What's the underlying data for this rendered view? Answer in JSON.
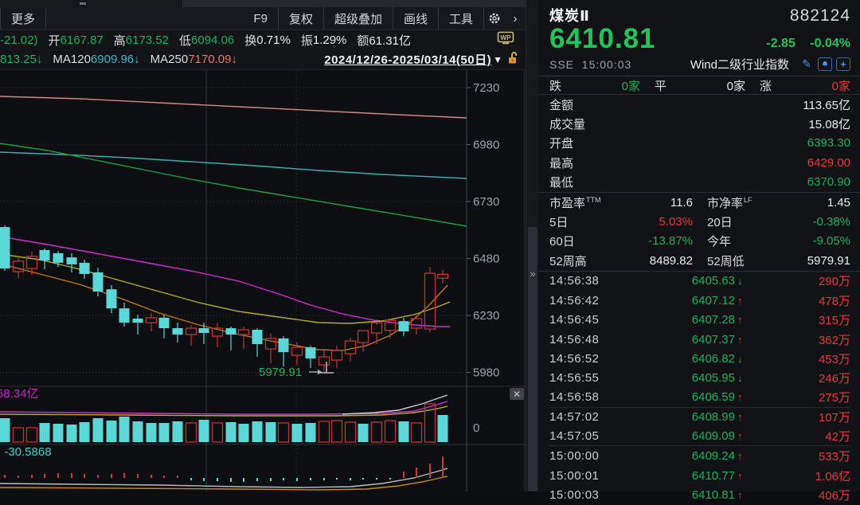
{
  "colors": {
    "green": "#12b45c",
    "red": "#e23b3c",
    "white": "#e8eaed",
    "cyan_candle": "#5ad8d8",
    "red_candle": "#c23434",
    "magenta": "#d024d0",
    "macd_cyan": "#3ecfcf"
  },
  "toolbar": {
    "more": "更多",
    "items": [
      "F9",
      "复权",
      "超级叠加",
      "画线",
      "工具"
    ],
    "gear_icon": "gear-icon",
    "chevron": "›"
  },
  "stats_row": {
    "prefix": "-21.02)",
    "groups": [
      {
        "label": "开",
        "value": "6167.87",
        "color": "green"
      },
      {
        "label": "高",
        "value": "6173.52",
        "color": "green"
      },
      {
        "label": "低",
        "value": "6094.06",
        "color": "green"
      },
      {
        "label": "换",
        "value": "0.71%",
        "color": "white"
      },
      {
        "label": "振",
        "value": "1.29%",
        "color": "white"
      },
      {
        "label": "额",
        "value": "61.31亿",
        "color": "white"
      }
    ]
  },
  "ma_row": {
    "prefix": "813.25↓",
    "groups": [
      {
        "label": "MA120",
        "value": "6909.96↓",
        "color": "cyan"
      },
      {
        "label": "MA250",
        "value": "7170.09↓",
        "color": "salmon"
      }
    ],
    "date_range": "2024/12/26-2025/03/14(50日)",
    "caret": "▼"
  },
  "chart_data": {
    "type": "candlestick",
    "y_axis_ticks": [
      7230,
      6980,
      6730,
      6480,
      6230,
      5980
    ],
    "ylim": [
      5905,
      7307
    ],
    "low_annotation": "5979.91",
    "volume_pane_label": "58.34亿",
    "volume_zero_label": "0",
    "macd_pane_label": ": -30.5868",
    "candles": [
      [
        6,
        6618,
        6625,
        6426,
        6436
      ],
      [
        23,
        6422,
        6489,
        6394,
        6468
      ],
      [
        40,
        6436,
        6510,
        6408,
        6489
      ],
      [
        56,
        6517,
        6524,
        6433,
        6471
      ],
      [
        73,
        6503,
        6513,
        6443,
        6461
      ],
      [
        90,
        6485,
        6503,
        6419,
        6454
      ],
      [
        106,
        6461,
        6475,
        6391,
        6412
      ],
      [
        123,
        6419,
        6440,
        6314,
        6335
      ],
      [
        140,
        6345,
        6363,
        6240,
        6261
      ],
      [
        156,
        6261,
        6286,
        6181,
        6198
      ],
      [
        173,
        6216,
        6233,
        6146,
        6198
      ],
      [
        190,
        6198,
        6240,
        6160,
        6220
      ],
      [
        206,
        6220,
        6232,
        6129,
        6174
      ],
      [
        223,
        6174,
        6198,
        6111,
        6146
      ],
      [
        240,
        6146,
        6188,
        6097,
        6174
      ],
      [
        256,
        6174,
        6198,
        6104,
        6153
      ],
      [
        273,
        6139,
        6198,
        6090,
        6174
      ],
      [
        290,
        6174,
        6181,
        6076,
        6146
      ],
      [
        306,
        6146,
        6181,
        6083,
        6167
      ],
      [
        323,
        6167,
        6174,
        6048,
        6104
      ],
      [
        340,
        6083,
        6150,
        6020,
        6129
      ],
      [
        356,
        6129,
        6139,
        6006,
        6069
      ],
      [
        373,
        6055,
        6111,
        6013,
        6090
      ],
      [
        390,
        6090,
        6097,
        5999,
        6041
      ],
      [
        407,
        6013,
        6076,
        5979.91,
        6048
      ],
      [
        423,
        6034,
        6097,
        5999,
        6076
      ],
      [
        440,
        6062,
        6132,
        6027,
        6118
      ],
      [
        456,
        6111,
        6160,
        6069,
        6163
      ],
      [
        473,
        6153,
        6188,
        6104,
        6198
      ],
      [
        490,
        6164,
        6205,
        6129,
        6209
      ],
      [
        507,
        6205,
        6219,
        6139,
        6160
      ],
      [
        523,
        6174,
        6230,
        6146,
        6216
      ],
      [
        540,
        6170,
        6443,
        6156,
        6415
      ],
      [
        556,
        6393.3,
        6429,
        6370.9,
        6410.81
      ]
    ],
    "volume_heights": [
      30,
      18,
      18,
      24,
      23,
      22,
      25,
      30,
      27,
      32,
      26,
      24,
      24,
      26,
      24,
      28,
      24,
      25,
      23,
      26,
      25,
      24,
      23,
      24,
      26,
      27,
      25,
      23,
      25,
      27,
      26,
      24,
      48,
      34
    ],
    "volume_dirs": [
      0,
      1,
      1,
      0,
      0,
      0,
      0,
      0,
      0,
      0,
      0,
      0,
      0,
      0,
      1,
      0,
      1,
      0,
      0,
      0,
      0,
      1,
      0,
      0,
      1,
      1,
      1,
      0,
      1,
      1,
      0,
      1,
      1,
      0
    ],
    "macd_hist": [
      4,
      3,
      4,
      5,
      6,
      6,
      5,
      4,
      5,
      6,
      5,
      4,
      3,
      3,
      -3,
      -4,
      -4,
      -5,
      -5,
      -4,
      -4,
      -3,
      -4,
      -3,
      -3,
      -2,
      -3,
      -2,
      -2,
      -2,
      8,
      13,
      18,
      27
    ],
    "lines": {
      "ma250": {
        "color": "#cf8884",
        "pts": [
          [
            0,
            33
          ],
          [
            100,
            36
          ],
          [
            200,
            41
          ],
          [
            300,
            46
          ],
          [
            400,
            51
          ],
          [
            500,
            56
          ],
          [
            586,
            60
          ]
        ]
      },
      "ma120": {
        "color": "#2fb3b3",
        "pts": [
          [
            0,
            103
          ],
          [
            80,
            106
          ],
          [
            160,
            110
          ],
          [
            240,
            115
          ],
          [
            320,
            120
          ],
          [
            400,
            126
          ],
          [
            480,
            131
          ],
          [
            586,
            136
          ]
        ]
      },
      "ma60": {
        "color": "#1e9e45",
        "pts": [
          [
            0,
            92
          ],
          [
            60,
            101
          ],
          [
            120,
            113
          ],
          [
            180,
            125
          ],
          [
            240,
            137
          ],
          [
            300,
            148
          ],
          [
            360,
            158
          ],
          [
            420,
            168
          ],
          [
            480,
            178
          ],
          [
            540,
            188
          ],
          [
            586,
            196
          ]
        ]
      },
      "ma20": {
        "color": "#cf30cf",
        "pts": [
          [
            0,
            209
          ],
          [
            60,
            219
          ],
          [
            120,
            230
          ],
          [
            180,
            241
          ],
          [
            240,
            252
          ],
          [
            300,
            265
          ],
          [
            350,
            281
          ],
          [
            390,
            295
          ],
          [
            430,
            306
          ],
          [
            470,
            314
          ],
          [
            510,
            319
          ],
          [
            550,
            322
          ],
          [
            565,
            322
          ]
        ]
      },
      "ma10": {
        "color": "#b5ad28",
        "pts": [
          [
            0,
            231
          ],
          [
            50,
            238
          ],
          [
            100,
            250
          ],
          [
            150,
            264
          ],
          [
            200,
            278
          ],
          [
            250,
            292
          ],
          [
            300,
            303
          ],
          [
            350,
            310
          ],
          [
            400,
            317
          ],
          [
            440,
            318
          ],
          [
            480,
            315
          ],
          [
            520,
            307
          ],
          [
            550,
            297
          ],
          [
            565,
            291
          ]
        ]
      },
      "ma5": {
        "color": "#bf7a1a",
        "pts": [
          [
            0,
            243
          ],
          [
            50,
            256
          ],
          [
            100,
            269
          ],
          [
            150,
            286
          ],
          [
            200,
            305
          ],
          [
            250,
            320
          ],
          [
            300,
            332
          ],
          [
            350,
            342
          ],
          [
            400,
            351
          ],
          [
            430,
            352
          ],
          [
            460,
            346
          ],
          [
            490,
            333
          ],
          [
            515,
            317
          ],
          [
            540,
            294
          ],
          [
            562,
            270
          ]
        ]
      },
      "vol_magenta": {
        "color": "#cf30cf",
        "pts": [
          [
            0,
            429
          ],
          [
            100,
            430
          ],
          [
            200,
            431
          ],
          [
            300,
            432
          ],
          [
            400,
            432
          ],
          [
            480,
            431
          ],
          [
            520,
            428
          ],
          [
            545,
            421
          ],
          [
            562,
            416
          ]
        ]
      },
      "vol_yellow": {
        "color": "#b5ad28",
        "pts": [
          [
            0,
            432
          ],
          [
            150,
            433
          ],
          [
            300,
            434
          ],
          [
            420,
            434
          ],
          [
            480,
            433
          ],
          [
            520,
            430
          ],
          [
            550,
            425
          ],
          [
            562,
            422
          ]
        ]
      },
      "vol_white": {
        "color": "#c8ccd0",
        "pts": [
          [
            430,
            432
          ],
          [
            470,
            430
          ],
          [
            500,
            427
          ],
          [
            530,
            419
          ],
          [
            550,
            412
          ],
          [
            562,
            408
          ]
        ]
      },
      "macd_gray": {
        "color": "#b9bdc1",
        "pts": [
          [
            0,
            519
          ],
          [
            100,
            520
          ],
          [
            200,
            521
          ],
          [
            300,
            523
          ],
          [
            380,
            524
          ],
          [
            440,
            523
          ],
          [
            480,
            519
          ],
          [
            520,
            512
          ],
          [
            545,
            505
          ],
          [
            562,
            500
          ]
        ]
      },
      "macd_orange": {
        "color": "#c8891c",
        "pts": [
          [
            0,
            524
          ],
          [
            150,
            525
          ],
          [
            300,
            526
          ],
          [
            400,
            527
          ],
          [
            460,
            526
          ],
          [
            500,
            522
          ],
          [
            530,
            517
          ],
          [
            562,
            510
          ]
        ]
      }
    }
  },
  "quote": {
    "name": "煤炭Ⅱ",
    "code": "882124",
    "price": "6410.81",
    "change": "-2.85",
    "change_pct": "-0.04%",
    "exchange": "SSE",
    "time": "15:00:03",
    "index_type": "Wind二级行业指数",
    "breadth": {
      "down_label": "跌",
      "down": "0家",
      "flat_label": "平",
      "flat": "0家",
      "up_label": "涨",
      "up": "0家"
    },
    "rows": [
      {
        "label": "金额",
        "value": "113.65亿",
        "color": "white"
      },
      {
        "label": "成交量",
        "value": "15.08亿",
        "color": "white"
      },
      {
        "label": "开盘",
        "value": "6393.30",
        "color": "green"
      },
      {
        "label": "最高",
        "value": "6429.00",
        "color": "red"
      },
      {
        "label": "最低",
        "value": "6370.90",
        "color": "green"
      }
    ],
    "pairs": [
      {
        "l": "市盈率",
        "lsup": "TTM",
        "lv": "11.6",
        "lc": "white",
        "r": "市净率",
        "rsup": "LF",
        "rv": "1.45",
        "rc": "white"
      },
      {
        "l": "5日",
        "lsup": "",
        "lv": "5.03%",
        "lc": "red",
        "r": "20日",
        "rsup": "",
        "rv": "-0.38%",
        "rc": "green"
      },
      {
        "l": "60日",
        "lsup": "",
        "lv": "-13.87%",
        "lc": "green",
        "r": "今年",
        "rsup": "",
        "rv": "-9.05%",
        "rc": "green"
      },
      {
        "l": "52周高",
        "lsup": "",
        "lv": "8489.82",
        "lc": "white",
        "r": "52周低",
        "rsup": "",
        "rv": "5979.91",
        "rc": "white"
      }
    ]
  },
  "ticks": [
    {
      "time": "14:56:38",
      "price": "6405.63",
      "dir": "down",
      "vol": "290万",
      "sep_after": false
    },
    {
      "time": "14:56:42",
      "price": "6407.12",
      "dir": "up",
      "vol": "478万",
      "sep_after": false
    },
    {
      "time": "14:56:45",
      "price": "6407.28",
      "dir": "up",
      "vol": "315万",
      "sep_after": false
    },
    {
      "time": "14:56:48",
      "price": "6407.37",
      "dir": "up",
      "vol": "362万",
      "sep_after": false
    },
    {
      "time": "14:56:52",
      "price": "6406.82",
      "dir": "down",
      "vol": "453万",
      "sep_after": false
    },
    {
      "time": "14:56:55",
      "price": "6405.95",
      "dir": "down",
      "vol": "246万",
      "sep_after": false
    },
    {
      "time": "14:56:58",
      "price": "6406.59",
      "dir": "up",
      "vol": "275万",
      "sep_after": true
    },
    {
      "time": "14:57:02",
      "price": "6408.99",
      "dir": "up",
      "vol": "107万",
      "sep_after": false
    },
    {
      "time": "14:57:05",
      "price": "6409.09",
      "dir": "up",
      "vol": "42万",
      "sep_after": true
    },
    {
      "time": "15:00:00",
      "price": "6409.24",
      "dir": "up",
      "vol": "533万",
      "sep_after": false
    },
    {
      "time": "15:00:01",
      "price": "6410.77",
      "dir": "up",
      "vol": "1.06亿",
      "sep_after": false
    },
    {
      "time": "15:00:03",
      "price": "6410.81",
      "dir": "up",
      "vol": "406万",
      "sep_after": false
    }
  ]
}
